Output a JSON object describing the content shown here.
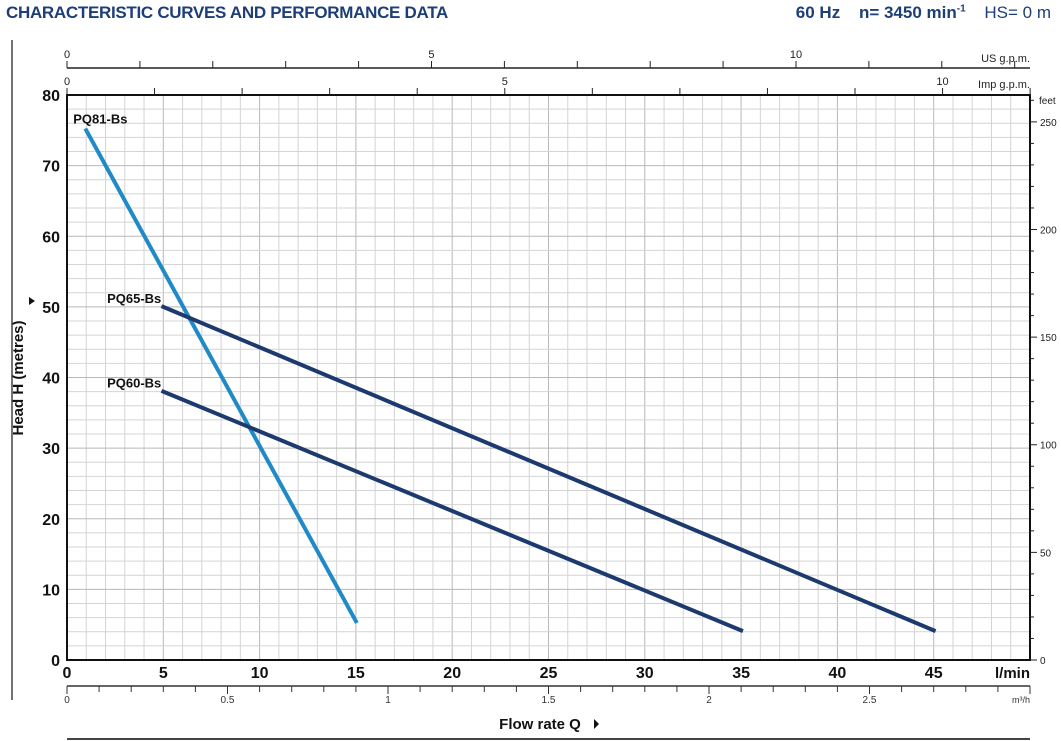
{
  "header": {
    "title": "CHARACTERISTIC CURVES AND PERFORMANCE DATA",
    "frequency": "60 Hz",
    "speed": "n= 3450 min",
    "speed_sup": "-1",
    "suction": "HS= 0 m"
  },
  "chart_data": {
    "type": "line",
    "title": "",
    "xlabel": "Flow rate Q",
    "ylabel": "Head H (metres)",
    "xunit": "l/min",
    "xlim": [
      0,
      50
    ],
    "xticks": [
      0,
      5,
      10,
      15,
      20,
      25,
      30,
      35,
      40,
      45
    ],
    "yunit": "",
    "ylim": [
      0,
      80
    ],
    "yticks": [
      0,
      10,
      20,
      30,
      40,
      50,
      60,
      70,
      80
    ],
    "grid": true,
    "secondary_axes": {
      "us_gpm": {
        "label": "US g.p.m.",
        "ticks": [
          0,
          5,
          10
        ]
      },
      "imp_gpm": {
        "label": "Imp g.p.m.",
        "ticks": [
          0,
          5,
          10
        ]
      },
      "m3h": {
        "label": "m³/h",
        "ticks": [
          "0",
          "0.5",
          "1",
          "1.5",
          "2",
          "2.5"
        ]
      },
      "feet": {
        "label": "feet",
        "ticks": [
          0,
          50,
          100,
          150,
          200,
          250
        ]
      }
    },
    "series": [
      {
        "name": "PQ81-Bs",
        "color": "#1f8ac6",
        "points": [
          [
            1,
            75
          ],
          [
            15,
            5.5
          ]
        ]
      },
      {
        "name": "PQ65-Bs",
        "color": "#1d3a6e",
        "points": [
          [
            5,
            50
          ],
          [
            45,
            4.2
          ]
        ]
      },
      {
        "name": "PQ60-Bs",
        "color": "#1d3a6e",
        "points": [
          [
            5,
            38
          ],
          [
            35,
            4.2
          ]
        ]
      }
    ]
  }
}
